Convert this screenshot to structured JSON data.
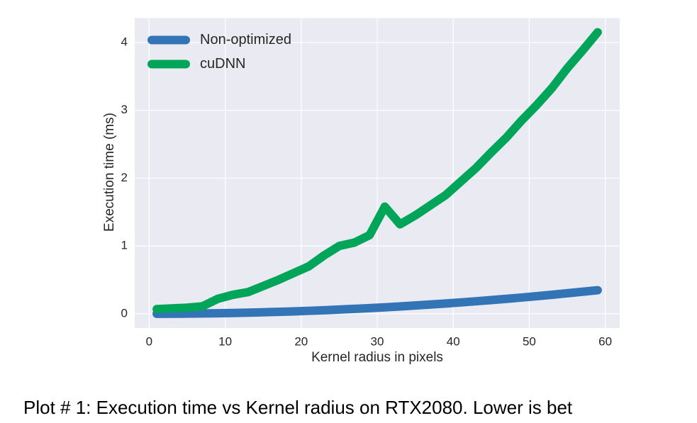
{
  "chart_data": {
    "type": "line",
    "xlabel": "Kernel radius in pixels",
    "ylabel": "Execution time (ms)",
    "caption": "Plot # 1: Execution time vs Kernel radius on RTX2080. Lower is bet",
    "x": [
      1,
      3,
      5,
      7,
      9,
      11,
      13,
      15,
      17,
      19,
      21,
      23,
      25,
      27,
      29,
      31,
      33,
      35,
      37,
      39,
      41,
      43,
      45,
      47,
      49,
      51,
      53,
      55,
      57,
      59
    ],
    "series": [
      {
        "name": "Non-optimized",
        "color": "#3274b5",
        "values": [
          0,
          0.001,
          0.003,
          0.005,
          0.008,
          0.012,
          0.017,
          0.023,
          0.029,
          0.036,
          0.044,
          0.053,
          0.063,
          0.073,
          0.084,
          0.096,
          0.109,
          0.123,
          0.137,
          0.152,
          0.168,
          0.185,
          0.203,
          0.221,
          0.24,
          0.26,
          0.281,
          0.303,
          0.325,
          0.348
        ]
      },
      {
        "name": "cuDNN",
        "color": "#00a55a",
        "values": [
          0.07,
          0.08,
          0.09,
          0.11,
          0.22,
          0.28,
          0.32,
          0.41,
          0.5,
          0.6,
          0.7,
          0.86,
          1.0,
          1.05,
          1.16,
          1.58,
          1.32,
          1.45,
          1.6,
          1.75,
          1.95,
          2.15,
          2.38,
          2.6,
          2.85,
          3.08,
          3.33,
          3.62,
          3.88,
          4.15
        ]
      }
    ],
    "xlim": [
      -1.9,
      61.9
    ],
    "xticks": [
      0,
      10,
      20,
      30,
      40,
      50,
      60
    ],
    "ylim": [
      -0.21,
      4.36
    ],
    "yticks": [
      0,
      1,
      2,
      3,
      4
    ],
    "grid": true,
    "legend": "upper left"
  }
}
